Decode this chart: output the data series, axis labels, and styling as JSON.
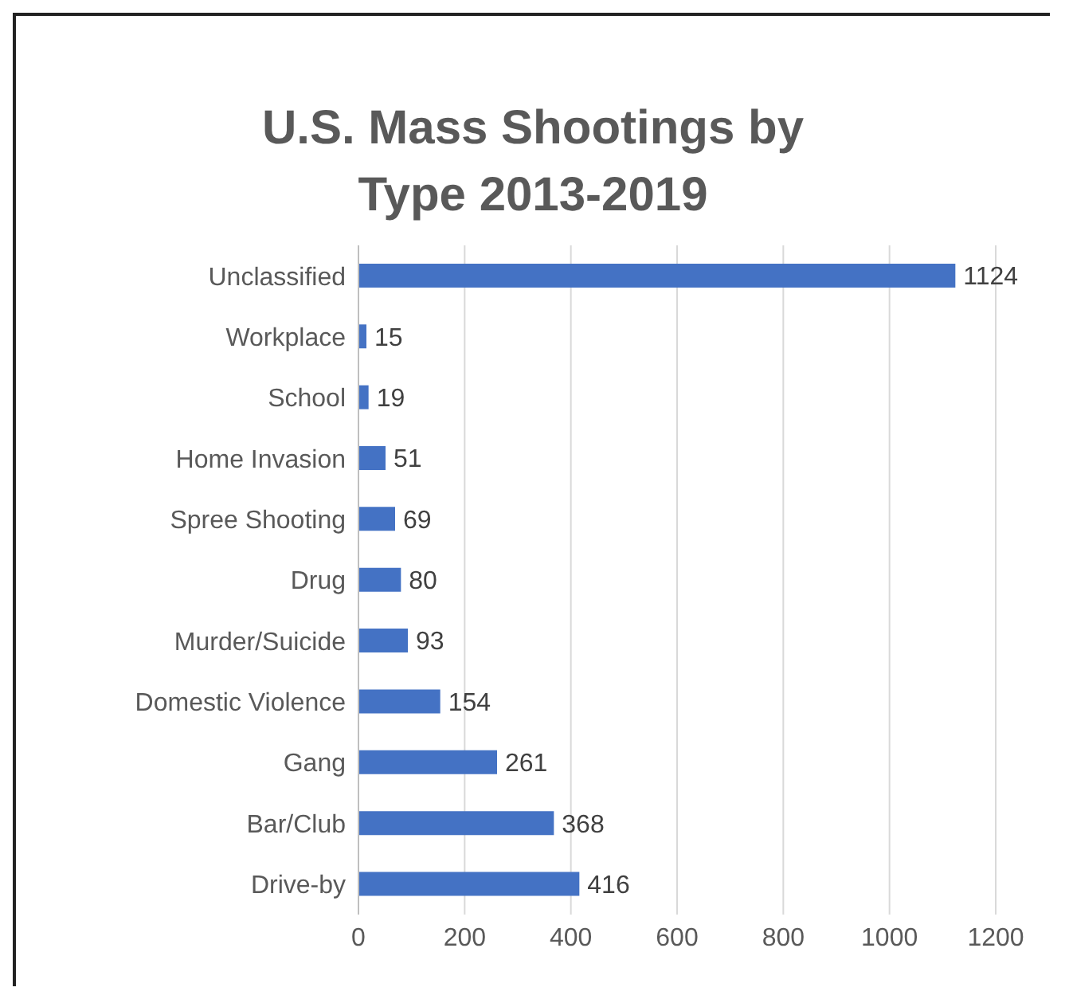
{
  "chart_data": {
    "type": "bar",
    "orientation": "horizontal",
    "title": "U.S. Mass Shootings by Type 2013-2019",
    "categories": [
      "Unclassified",
      "Workplace",
      "School",
      "Home Invasion",
      "Spree Shooting",
      "Drug",
      "Murder/Suicide",
      "Domestic Violence",
      "Gang",
      "Bar/Club",
      "Drive-by"
    ],
    "values": [
      1124,
      15,
      19,
      51,
      69,
      80,
      93,
      154,
      261,
      368,
      416
    ],
    "color": "#4472c4",
    "xlim": [
      0,
      1200
    ],
    "xticks": [
      0,
      200,
      400,
      600,
      800,
      1000,
      1200
    ],
    "grid": "x",
    "data_labels": true
  }
}
